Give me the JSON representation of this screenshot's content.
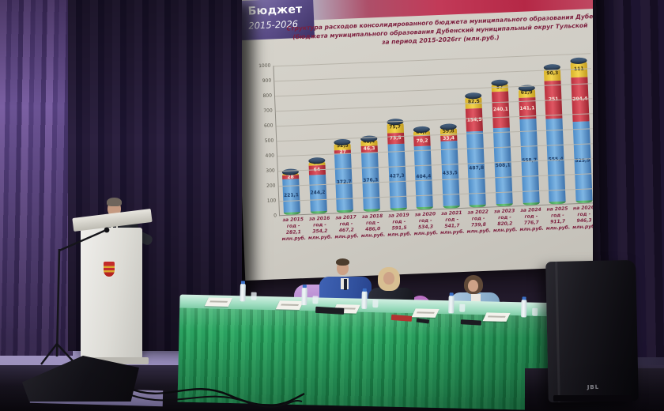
{
  "slide": {
    "badge": {
      "title": "Бюджет",
      "years": "2015-2026"
    },
    "title_lines": [
      "Структура расходов консолидированного бюджета муниципального образования Дубе",
      "(бюджета муниципального образования Дубенский муниципальный округ Тульской",
      "за период 2015-2026гг  (млн.руб.)"
    ]
  },
  "chart_data": {
    "type": "bar",
    "stacked": true,
    "title": "Структура расходов консолидированного бюджета муниципального образования Дубе",
    "subtitle": "(бюджета муниципального образования Дубенский муниципальный округ Тульской",
    "period_line": "за период 2015-2026гг  (млн.руб.)",
    "ylim": [
      0,
      1000
    ],
    "y_ticks": [
      0,
      100,
      200,
      300,
      400,
      500,
      600,
      700,
      800,
      900,
      1000
    ],
    "grid": true,
    "legend_position": "none",
    "categories": [
      "за 2015 год",
      "за 2016 год",
      "за 2017 год",
      "за 2018 год",
      "за 2019 год",
      "за 2020 год",
      "за 2021 год",
      "за 2022 год",
      "за 2023 год",
      "за 2024 год",
      "на 2025 год",
      "на 2026 год"
    ],
    "totals": [
      282.1,
      354.2,
      467.2,
      486.0,
      591.5,
      534.3,
      541.7,
      739.8,
      820.2,
      776.7,
      911.7,
      946.3
    ],
    "totals_formatted": [
      "282,1",
      "354,2",
      "467,2",
      "486,0",
      "591,5",
      "534,3",
      "541,7",
      "739,8",
      "820,2",
      "776,7",
      "911,7",
      "946,3"
    ],
    "x_label_line2": "год -",
    "x_label_line4": "млн.руб.",
    "series": [
      {
        "name": "segment-green-bottom",
        "color": "#44a04f",
        "values": [
          15.0,
          15.0,
          15.0,
          15.0,
          15.0,
          15.0,
          15.0,
          15.0,
          15.0,
          15.0,
          15.0,
          15.0
        ]
      },
      {
        "name": "segment-blue",
        "color": "#5b9bd5",
        "values": [
          221.1,
          244.2,
          372.7,
          376.3,
          427.3,
          404.4,
          433.5,
          487.8,
          508.1,
          558.7,
          555.4,
          525.9
        ]
      },
      {
        "name": "segment-red",
        "color": "#c9303f",
        "values": [
          28.0,
          64.0,
          27.0,
          46.3,
          73.5,
          70.2,
          33.4,
          154.5,
          240.1,
          141.1,
          251.0,
          294.4
        ]
      },
      {
        "name": "segment-yellow-top",
        "color": "#e8c63a",
        "values": [
          18.0,
          31.0,
          52.5,
          48.4,
          75.7,
          44.7,
          59.8,
          82.5,
          57.0,
          61.9,
          90.3,
          111.0
        ]
      }
    ]
  },
  "pa_speaker": {
    "logo": "JBL"
  },
  "colors": {
    "curtain_purple": "#6b5394",
    "tablecloth_green": "#2ba261",
    "bar_blue": "#5b9bd5",
    "bar_red": "#c9303f",
    "bar_yellow": "#e8c63a",
    "slide_accent_red": "#b52846",
    "badge_purple": "#5e508c"
  }
}
